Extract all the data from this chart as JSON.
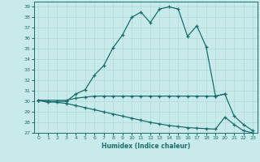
{
  "xlabel": "Humidex (Indice chaleur)",
  "bg_color": "#c8eaea",
  "grid_color": "#b0d8d8",
  "line_color": "#1a6e6e",
  "ylim": [
    27,
    39.5
  ],
  "yticks": [
    27,
    28,
    29,
    30,
    31,
    32,
    33,
    34,
    35,
    36,
    37,
    38,
    39
  ],
  "xlim": [
    -0.5,
    23.5
  ],
  "xticks": [
    0,
    1,
    2,
    3,
    4,
    5,
    6,
    7,
    8,
    9,
    10,
    11,
    12,
    13,
    14,
    15,
    16,
    17,
    18,
    19,
    20,
    21,
    22,
    23
  ],
  "line1_x": [
    0,
    1,
    2,
    3,
    4,
    5,
    6,
    7,
    8,
    9,
    10,
    11,
    12,
    13,
    14,
    15,
    16,
    17,
    18,
    19,
    20
  ],
  "line1_y": [
    30.1,
    29.9,
    30.0,
    30.0,
    30.7,
    31.1,
    32.5,
    33.4,
    35.1,
    36.3,
    38.0,
    38.5,
    37.5,
    38.8,
    39.0,
    38.8,
    36.2,
    37.2,
    35.2,
    30.5,
    30.7
  ],
  "line2_x": [
    0,
    3,
    4,
    5,
    6,
    7,
    8,
    9,
    10,
    11,
    12,
    13,
    14,
    15,
    16,
    17,
    18,
    19,
    20,
    21,
    22,
    23
  ],
  "line2_y": [
    30.1,
    30.1,
    30.3,
    30.4,
    30.5,
    30.5,
    30.5,
    30.5,
    30.5,
    30.5,
    30.5,
    30.5,
    30.5,
    30.5,
    30.5,
    30.5,
    30.5,
    30.5,
    30.7,
    28.6,
    27.8,
    27.2
  ],
  "line3_x": [
    0,
    1,
    2,
    3,
    4,
    5,
    6,
    7,
    8,
    9,
    10,
    11,
    12,
    13,
    14,
    15,
    16,
    17,
    18,
    19,
    20,
    21,
    22,
    23
  ],
  "line3_y": [
    30.1,
    30.0,
    29.9,
    29.8,
    29.6,
    29.4,
    29.2,
    29.0,
    28.8,
    28.6,
    28.4,
    28.2,
    28.0,
    27.85,
    27.7,
    27.6,
    27.5,
    27.45,
    27.4,
    27.35,
    28.5,
    27.8,
    27.2,
    27.0
  ]
}
